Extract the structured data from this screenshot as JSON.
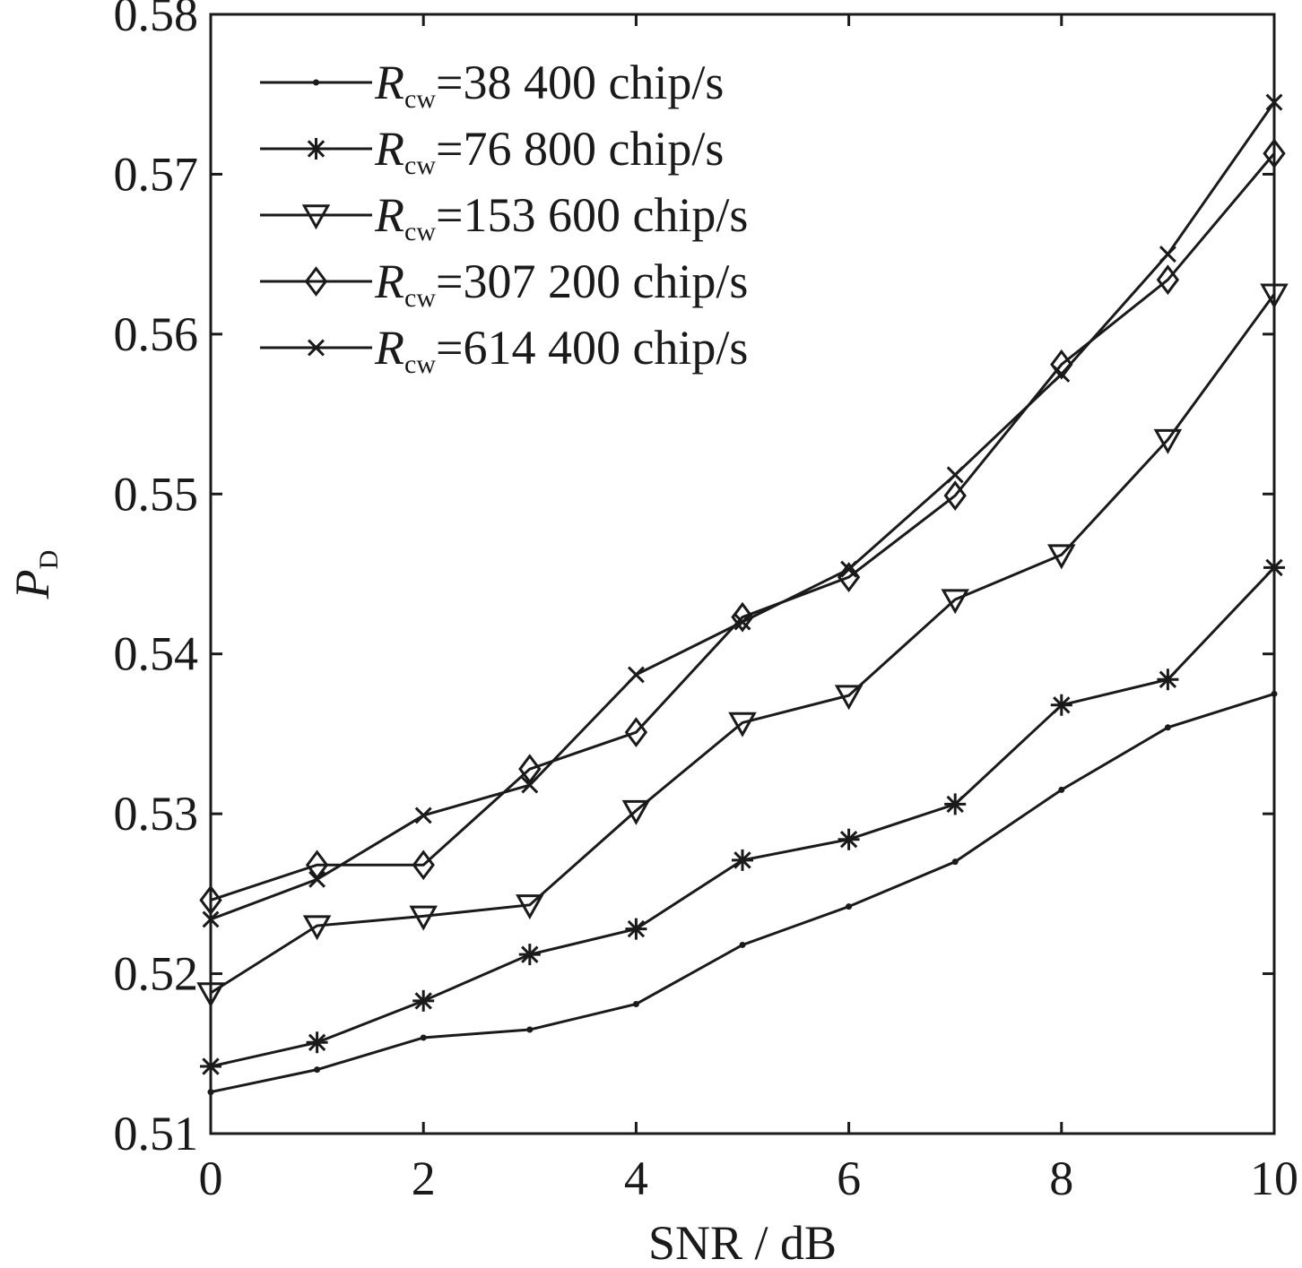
{
  "chart_data": {
    "type": "line",
    "title": "",
    "xlabel": "SNR / dB",
    "ylabel_main": "P",
    "ylabel_sub": "D",
    "xlim": [
      0,
      10
    ],
    "ylim": [
      0.51,
      0.58
    ],
    "xticks": [
      0,
      2,
      4,
      6,
      8,
      10
    ],
    "xtick_labels": [
      "0",
      "2",
      "4",
      "6",
      "8",
      "10"
    ],
    "yticks": [
      0.51,
      0.52,
      0.53,
      0.54,
      0.55,
      0.56,
      0.57,
      0.58
    ],
    "ytick_labels": [
      "0.51",
      "0.52",
      "0.53",
      "0.54",
      "0.55",
      "0.56",
      "0.57",
      "0.58"
    ],
    "grid": false,
    "legend_position": "top-left",
    "x": [
      0,
      1,
      2,
      3,
      4,
      5,
      6,
      7,
      8,
      9,
      10
    ],
    "series": [
      {
        "name": "=38 400 chip/s",
        "symbol": "R",
        "symbol_sub": "cw",
        "marker": "dot",
        "values": [
          0.5126,
          0.514,
          0.516,
          0.5165,
          0.5181,
          0.5218,
          0.5242,
          0.527,
          0.5315,
          0.5354,
          0.5375
        ]
      },
      {
        "name": "=76 800 chip/s",
        "symbol": "R",
        "symbol_sub": "cw",
        "marker": "asterisk",
        "values": [
          0.5142,
          0.5157,
          0.5183,
          0.5212,
          0.5228,
          0.5271,
          0.5284,
          0.5306,
          0.5368,
          0.5384,
          0.5454
        ]
      },
      {
        "name": "=153 600 chip/s",
        "symbol": "R",
        "symbol_sub": "cw",
        "marker": "triangle-down",
        "values": [
          0.5188,
          0.523,
          0.5236,
          0.5243,
          0.5302,
          0.5357,
          0.5374,
          0.5434,
          0.5462,
          0.5534,
          0.5625
        ]
      },
      {
        "name": "=307 200 chip/s",
        "symbol": "R",
        "symbol_sub": "cw",
        "marker": "diamond",
        "values": [
          0.5246,
          0.5268,
          0.5268,
          0.5328,
          0.5351,
          0.5423,
          0.5448,
          0.5499,
          0.5581,
          0.5634,
          0.5713
        ]
      },
      {
        "name": "=614 400 chip/s",
        "symbol": "R",
        "symbol_sub": "cw",
        "marker": "x",
        "values": [
          0.5234,
          0.5259,
          0.5299,
          0.5318,
          0.5387,
          0.542,
          0.5453,
          0.5512,
          0.5575,
          0.565,
          0.5745
        ]
      }
    ]
  }
}
